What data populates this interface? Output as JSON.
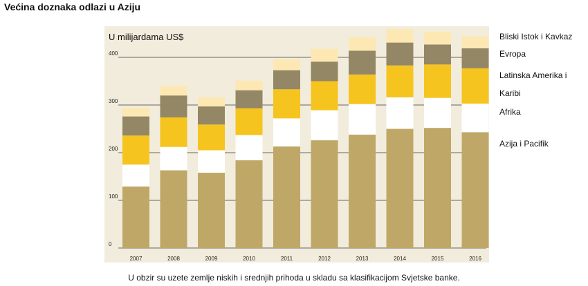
{
  "title": "Većina doznaka odlazi u Aziju",
  "note": "U obzir su uzete zemlje niskih i srednjih prihoda u skladu sa klasifikacijom Svjetske banke.",
  "chart_data": {
    "type": "bar",
    "stacked": true,
    "ylabel": "U milijardama US$",
    "ylim": [
      0,
      450
    ],
    "yticks": [
      0,
      100,
      200,
      300,
      400
    ],
    "grid": "horizontal at ticks",
    "legend_placement": "right",
    "categories": [
      "2007",
      "2008",
      "2009",
      "2010",
      "2011",
      "2012",
      "2013",
      "2014",
      "2015",
      "2016"
    ],
    "series": [
      {
        "name": "Azija i Pacifik",
        "color": "#bfa867",
        "values": [
          129,
          163,
          158,
          184,
          213,
          226,
          238,
          250,
          252,
          243
        ]
      },
      {
        "name": "Afrika",
        "color": "#ffffff",
        "values": [
          46,
          49,
          47,
          53,
          59,
          63,
          64,
          66,
          63,
          60
        ]
      },
      {
        "name": "Latinska Amerika i Karibi",
        "color": "#f6c41f",
        "values": [
          61,
          62,
          54,
          56,
          61,
          61,
          62,
          67,
          70,
          74
        ]
      },
      {
        "name": "Evropa",
        "color": "#948766",
        "values": [
          40,
          46,
          38,
          38,
          40,
          41,
          50,
          48,
          42,
          42
        ]
      },
      {
        "name": "Bliski Istok i Kavkaz",
        "color": "#fde8b3",
        "values": [
          18,
          20,
          19,
          20,
          23,
          27,
          28,
          28,
          27,
          25
        ]
      }
    ]
  },
  "legend": {
    "item1": "Bliski Istok i Kavkaz",
    "item2": "Evropa",
    "item3_line1": "Latinska Amerika i",
    "item3_line2": "Karibi",
    "item4": "Afrika",
    "item5": "Azija i Pacifik"
  }
}
